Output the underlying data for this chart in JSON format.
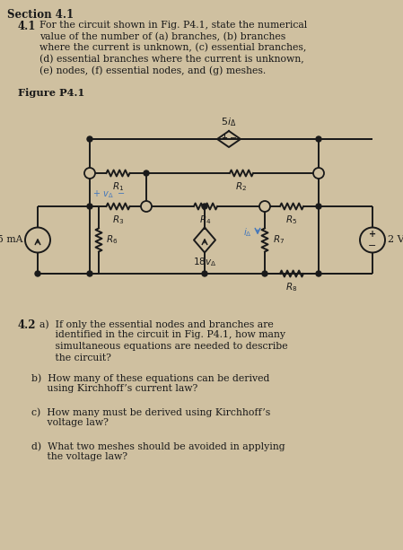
{
  "bg_color": "#cfc0a0",
  "text_color": "#1a1a1a",
  "line_color": "#1a1a1a",
  "section_title": "Section 4.1",
  "problem_41_label": "4.1",
  "figure_label": "Figure P4.1",
  "problem_42_label": "4.2"
}
